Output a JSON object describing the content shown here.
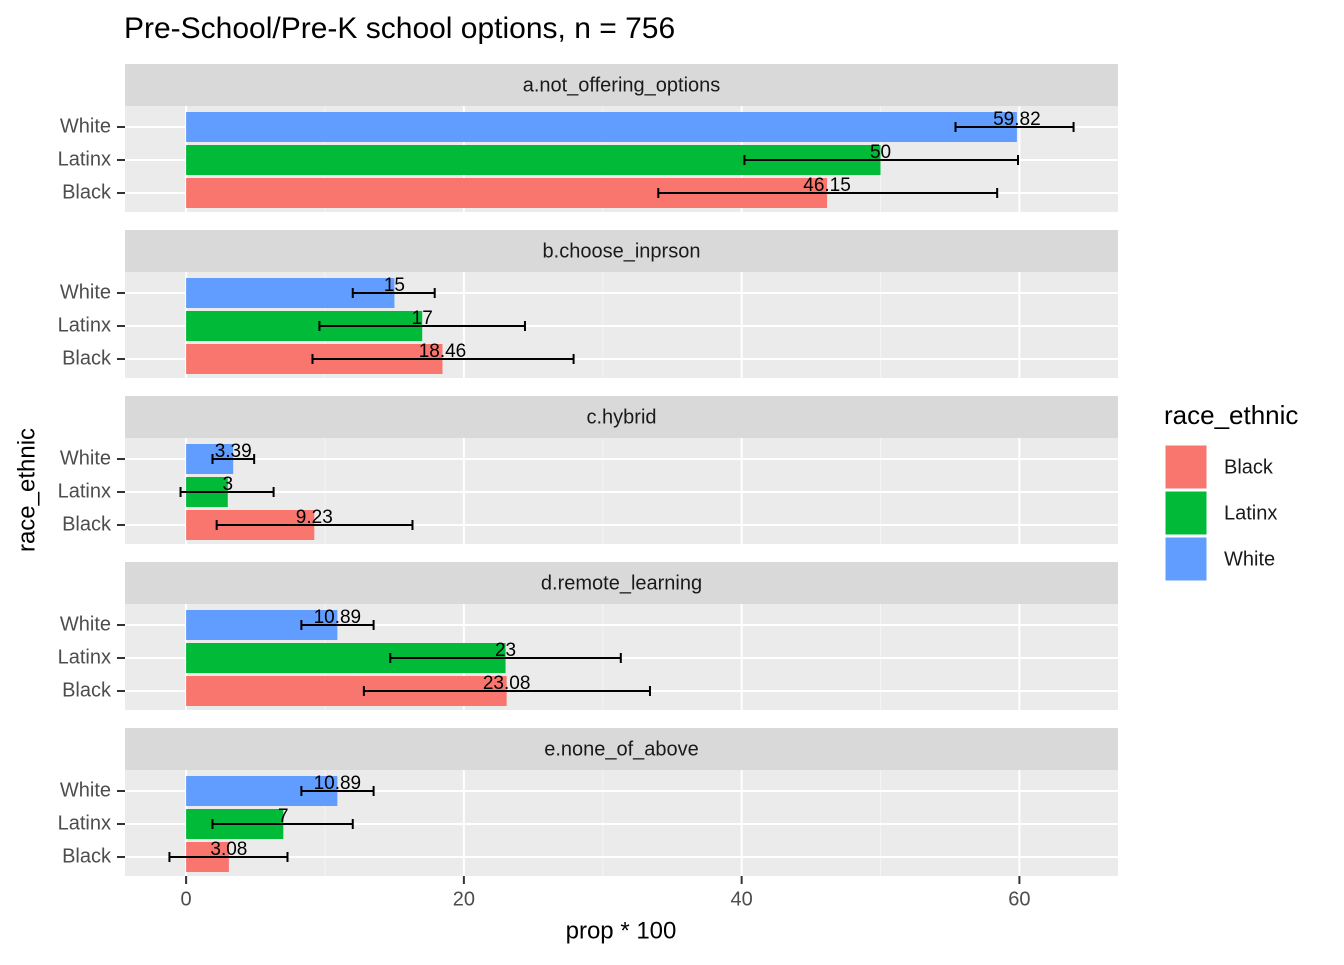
{
  "chart_data": {
    "type": "bar",
    "title": "Pre-School/Pre-K school options, n = 756",
    "x_label": "prop * 100",
    "y_label": "race_ethnic",
    "legend_title": "race_ethnic",
    "facets": [
      "a.not_offering_options",
      "b.choose_inprson",
      "c.hybrid",
      "d.remote_learning",
      "e.none_of_above"
    ],
    "series": [
      {
        "name": "Black",
        "color": "#F8766D",
        "values": [
          46.15,
          18.46,
          9.23,
          23.08,
          3.08
        ],
        "lower": [
          34.0,
          9.1,
          2.2,
          12.8,
          -1.2
        ],
        "upper": [
          58.4,
          27.9,
          16.3,
          33.4,
          7.3
        ]
      },
      {
        "name": "Latinx",
        "color": "#00BA38",
        "values": [
          50,
          17,
          3,
          23,
          7
        ],
        "lower": [
          40.2,
          9.6,
          -0.4,
          14.7,
          1.9
        ],
        "upper": [
          59.9,
          24.4,
          6.3,
          31.3,
          12.0
        ]
      },
      {
        "name": "White",
        "color": "#619CFF",
        "values": [
          59.82,
          15,
          3.39,
          10.89,
          10.89
        ],
        "lower": [
          55.4,
          12.0,
          1.9,
          8.3,
          8.3
        ],
        "upper": [
          63.9,
          17.9,
          4.9,
          13.5,
          13.5
        ]
      }
    ],
    "xlim": [
      -4.4,
      67.1
    ],
    "xticks": [
      0,
      20,
      40,
      60
    ],
    "grid": true
  }
}
